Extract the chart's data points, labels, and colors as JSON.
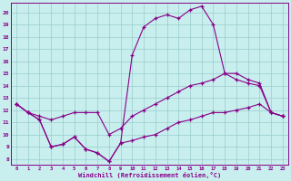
{
  "xlabel": "Windchill (Refroidissement éolien,°C)",
  "bg_color": "#c8eeee",
  "line_color": "#880088",
  "grid_color": "#99cccc",
  "hours": [
    0,
    1,
    2,
    3,
    4,
    5,
    6,
    7,
    8,
    9,
    10,
    11,
    12,
    13,
    14,
    15,
    16,
    17,
    18,
    19,
    20,
    21,
    22,
    23
  ],
  "series_upper": [
    12.5,
    11.8,
    11.2,
    9.0,
    9.2,
    9.8,
    8.8,
    8.5,
    7.8,
    9.3,
    16.5,
    18.8,
    19.5,
    19.8,
    19.5,
    20.2,
    20.5,
    19.0,
    15.0,
    14.5,
    14.2,
    14.0,
    11.8,
    11.5
  ],
  "series_middle": [
    12.5,
    11.8,
    11.5,
    11.2,
    11.5,
    11.8,
    11.8,
    11.8,
    10.0,
    10.5,
    11.5,
    12.0,
    12.5,
    13.0,
    13.5,
    14.0,
    14.2,
    14.5,
    15.0,
    15.0,
    14.5,
    14.2,
    11.8,
    11.5
  ],
  "series_lower": [
    12.5,
    11.8,
    11.2,
    9.0,
    9.2,
    9.8,
    8.8,
    8.5,
    7.8,
    9.3,
    9.5,
    9.8,
    10.0,
    10.5,
    11.0,
    11.2,
    11.5,
    11.8,
    11.8,
    12.0,
    12.2,
    12.5,
    11.8,
    11.5
  ],
  "ylim_min": 7.5,
  "ylim_max": 20.8,
  "yticks": [
    8,
    9,
    10,
    11,
    12,
    13,
    14,
    15,
    16,
    17,
    18,
    19,
    20
  ],
  "xlim_min": -0.5,
  "xlim_max": 23.5,
  "xticks": [
    0,
    1,
    2,
    3,
    4,
    5,
    6,
    7,
    8,
    9,
    10,
    11,
    12,
    13,
    14,
    15,
    16,
    17,
    18,
    19,
    20,
    21,
    22,
    23
  ]
}
